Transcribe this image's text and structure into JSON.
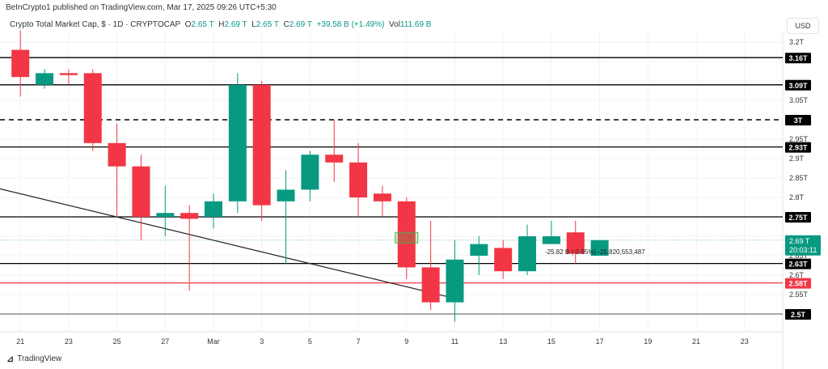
{
  "header": {
    "published": "BeInCrypto1 published on TradingView.com, Mar 17, 2025 09:26 UTC+5:30"
  },
  "legend": {
    "symbol": "Crypto Total Market Cap, $ · 1D · CRYPTOCAP",
    "o_label": "O",
    "o": "2.65 T",
    "h_label": "H",
    "h": "2.69 T",
    "l_label": "L",
    "l": "2.65 T",
    "c_label": "C",
    "c": "2.69 T",
    "change": "+39.58 B (+1.49%)",
    "vol_label": "Vol",
    "vol": "111.69 B"
  },
  "currency": "USD",
  "brand": "TradingView",
  "countdown": "20:03:11",
  "measure_label": "-25.82 B (-0.95%) -25,820,553,487",
  "colors": {
    "up": "#089981",
    "down": "#f23645",
    "level": "#000000",
    "support_red": "#f23645"
  },
  "chart_data": {
    "type": "candlestick",
    "ylim": [
      2.46,
      3.26
    ],
    "y_ticks": [
      "3.2T",
      "3.05T",
      "2.95T",
      "2.9T",
      "2.85T",
      "2.8T",
      "2.65T",
      "2.6T",
      "2.55T"
    ],
    "y_tick_values": [
      3.2,
      3.05,
      2.95,
      2.9,
      2.85,
      2.8,
      2.65,
      2.6,
      2.55
    ],
    "x_ticks": [
      "21",
      "23",
      "25",
      "27",
      "Mar",
      "3",
      "5",
      "7",
      "9",
      "11",
      "13",
      "15",
      "17",
      "19",
      "21",
      "23"
    ],
    "x_tick_days": [
      -8,
      -6,
      -4,
      -2,
      0,
      2,
      4,
      6,
      8,
      10,
      12,
      14,
      16,
      18,
      20,
      22
    ],
    "candles": [
      {
        "date": "Feb 21",
        "o": 3.18,
        "h": 3.23,
        "l": 3.06,
        "c": 3.11
      },
      {
        "date": "Feb 22",
        "o": 3.09,
        "h": 3.13,
        "l": 3.08,
        "c": 3.12
      },
      {
        "date": "Feb 23",
        "o": 3.12,
        "h": 3.13,
        "l": 3.09,
        "c": 3.115
      },
      {
        "date": "Feb 24",
        "o": 3.12,
        "h": 3.13,
        "l": 2.92,
        "c": 2.94
      },
      {
        "date": "Feb 25",
        "o": 2.94,
        "h": 2.99,
        "l": 2.75,
        "c": 2.88
      },
      {
        "date": "Feb 26",
        "o": 2.88,
        "h": 2.91,
        "l": 2.69,
        "c": 2.75
      },
      {
        "date": "Feb 27",
        "o": 2.75,
        "h": 2.83,
        "l": 2.7,
        "c": 2.76
      },
      {
        "date": "Feb 28",
        "o": 2.76,
        "h": 2.78,
        "l": 2.56,
        "c": 2.745
      },
      {
        "date": "Mar 1",
        "o": 2.75,
        "h": 2.81,
        "l": 2.72,
        "c": 2.79
      },
      {
        "date": "Mar 2",
        "o": 2.79,
        "h": 3.12,
        "l": 2.76,
        "c": 3.09
      },
      {
        "date": "Mar 3",
        "o": 3.09,
        "h": 3.1,
        "l": 2.74,
        "c": 2.78
      },
      {
        "date": "Mar 4",
        "o": 2.79,
        "h": 2.87,
        "l": 2.63,
        "c": 2.82
      },
      {
        "date": "Mar 5",
        "o": 2.82,
        "h": 2.92,
        "l": 2.79,
        "c": 2.91
      },
      {
        "date": "Mar 6",
        "o": 2.91,
        "h": 3.0,
        "l": 2.84,
        "c": 2.89
      },
      {
        "date": "Mar 7",
        "o": 2.89,
        "h": 2.94,
        "l": 2.75,
        "c": 2.8
      },
      {
        "date": "Mar 8",
        "o": 2.81,
        "h": 2.83,
        "l": 2.75,
        "c": 2.79
      },
      {
        "date": "Mar 9",
        "o": 2.79,
        "h": 2.8,
        "l": 2.59,
        "c": 2.62
      },
      {
        "date": "Mar 10",
        "o": 2.62,
        "h": 2.74,
        "l": 2.51,
        "c": 2.53
      },
      {
        "date": "Mar 11",
        "o": 2.53,
        "h": 2.69,
        "l": 2.48,
        "c": 2.64
      },
      {
        "date": "Mar 12",
        "o": 2.65,
        "h": 2.7,
        "l": 2.6,
        "c": 2.68
      },
      {
        "date": "Mar 13",
        "o": 2.67,
        "h": 2.69,
        "l": 2.59,
        "c": 2.61
      },
      {
        "date": "Mar 14",
        "o": 2.61,
        "h": 2.73,
        "l": 2.6,
        "c": 2.7
      },
      {
        "date": "Mar 15",
        "o": 2.68,
        "h": 2.74,
        "l": 2.68,
        "c": 2.7
      },
      {
        "date": "Mar 16",
        "o": 2.71,
        "h": 2.74,
        "l": 2.63,
        "c": 2.655
      },
      {
        "date": "Mar 17",
        "o": 2.65,
        "h": 2.69,
        "l": 2.65,
        "c": 2.69
      }
    ],
    "levels": [
      {
        "value": 3.16,
        "label": "3.16T",
        "style": "solid"
      },
      {
        "value": 3.09,
        "label": "3.09T",
        "style": "solid"
      },
      {
        "value": 3.0,
        "label": "3T",
        "style": "dashed"
      },
      {
        "value": 2.93,
        "label": "2.93T",
        "style": "solid"
      },
      {
        "value": 2.75,
        "label": "2.75T",
        "style": "solid"
      },
      {
        "value": 2.63,
        "label": "2.63T",
        "style": "solid"
      },
      {
        "value": 2.58,
        "label": "2.58T",
        "style": "red"
      },
      {
        "value": 2.5,
        "label": "2.5T",
        "style": "gray"
      }
    ],
    "last_price": {
      "value": 2.69,
      "label": "2.69 T"
    },
    "trendline": {
      "from": {
        "day": -10.7,
        "value": 2.85
      },
      "to": {
        "day": 10,
        "value": 2.54
      }
    }
  }
}
